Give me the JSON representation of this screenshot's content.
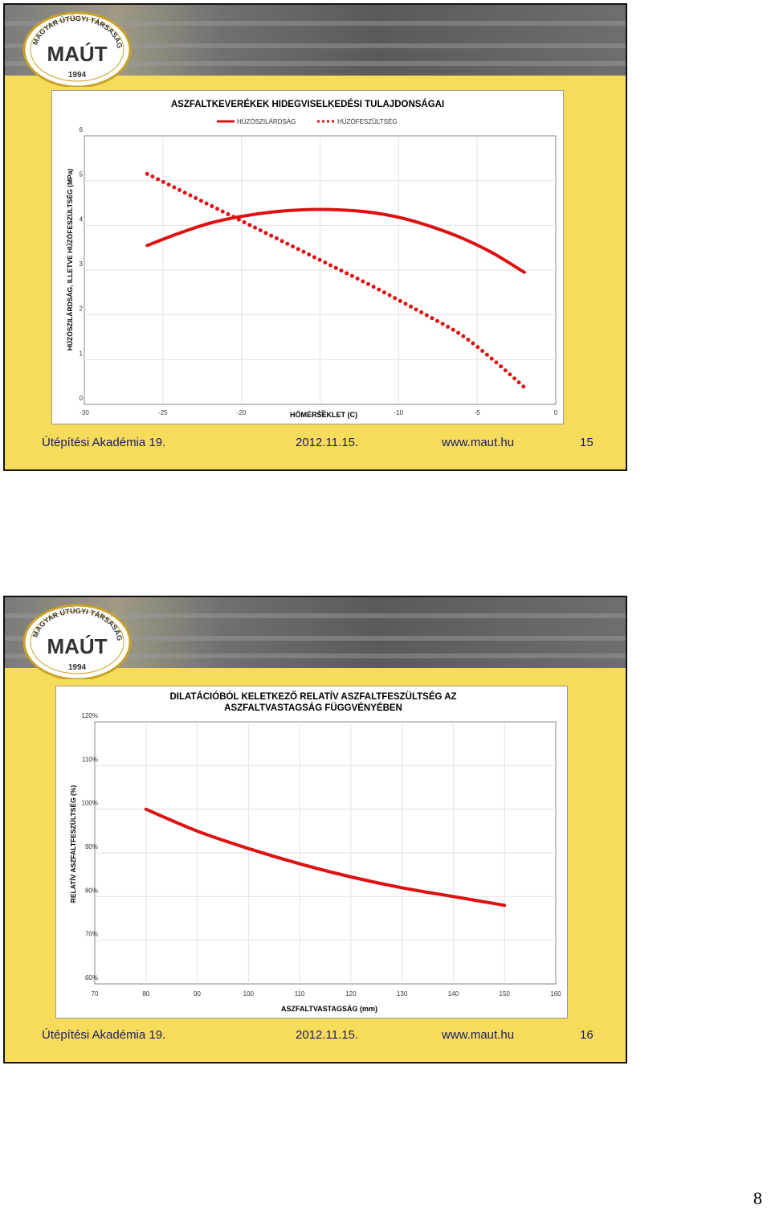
{
  "slides": [
    {
      "footer": {
        "left": "Útépítési Akadémia 19.",
        "center": "2012.11.15.",
        "url": "www.maut.hu",
        "number": "15"
      },
      "logo": {
        "arc_text": "MAGYAR ÚTÜGYI TÁRSASÁG",
        "name": "MAÚT",
        "year": "1994"
      }
    },
    {
      "footer": {
        "left": "Útépítési Akadémia 19.",
        "center": "2012.11.15.",
        "url": "www.maut.hu",
        "number": "16"
      },
      "logo": {
        "arc_text": "MAGYAR ÚTÜGYI TÁRSASÁG",
        "name": "MAÚT",
        "year": "1994"
      }
    }
  ],
  "page_number": "8",
  "colors": {
    "slide_bg": "#f7dc5c",
    "series": "#dd1111",
    "footer_text": "#1a1a66"
  },
  "chart_data": [
    {
      "type": "line",
      "title": "ASZFALTKEVERÉKEK HIDEGVISELKEDÉSI TULAJDONSÁGAI",
      "xlabel": "HŐMÉRSÉKLET (C)",
      "ylabel": "HÚZÓSZILÁRDSÁG, ILLETVE HÚZÓFESZÜLTSÉG (MPa)",
      "xlim": [
        -30,
        0
      ],
      "ylim": [
        0,
        6
      ],
      "x_ticks": [
        "-30",
        "-25",
        "-20",
        "-15",
        "-10",
        "-5",
        "0"
      ],
      "y_ticks": [
        "0",
        "1",
        "2",
        "3",
        "4",
        "5",
        "6"
      ],
      "legend_position": "top",
      "grid": true,
      "series": [
        {
          "name": "HÚZÓSZILÁRDSÁG",
          "style": "solid",
          "x": [
            -26,
            -24,
            -22,
            -20,
            -18,
            -16,
            -14,
            -12,
            -10,
            -8,
            -6,
            -4,
            -2
          ],
          "y": [
            3.55,
            3.82,
            4.05,
            4.2,
            4.3,
            4.35,
            4.35,
            4.3,
            4.18,
            3.98,
            3.72,
            3.38,
            2.95
          ]
        },
        {
          "name": "HÚZÓFESZÜLTSÉG",
          "style": "dotted",
          "x": [
            -26,
            -24,
            -22,
            -20,
            -18,
            -16,
            -14,
            -12,
            -10,
            -8,
            -6,
            -4,
            -2
          ],
          "y": [
            5.15,
            4.8,
            4.45,
            4.1,
            3.75,
            3.4,
            3.05,
            2.7,
            2.33,
            1.95,
            1.55,
            1.0,
            0.38
          ]
        }
      ]
    },
    {
      "type": "line",
      "title": "DILATÁCIÓBÓL KELETKEZŐ RELATÍV ASZFALTFESZÜLTSÉG AZ ASZFALTVASTAGSÁG FÜGGVÉNYÉBEN",
      "xlabel": "ASZFALTVASTAGSÁG (mm)",
      "ylabel": "RELATÍV ASZFALTFESZÜLTSÉG (%)",
      "xlim": [
        70,
        160
      ],
      "ylim": [
        60,
        120
      ],
      "x_ticks": [
        "70",
        "80",
        "90",
        "100",
        "110",
        "120",
        "130",
        "140",
        "150",
        "160"
      ],
      "y_ticks": [
        "60%",
        "70%",
        "80%",
        "90%",
        "100%",
        "110%",
        "120%"
      ],
      "grid": true,
      "series": [
        {
          "style": "solid",
          "x": [
            80,
            90,
            100,
            110,
            120,
            130,
            140,
            150
          ],
          "y": [
            100,
            95,
            91,
            87.5,
            84.5,
            82,
            80,
            78
          ]
        }
      ]
    }
  ]
}
